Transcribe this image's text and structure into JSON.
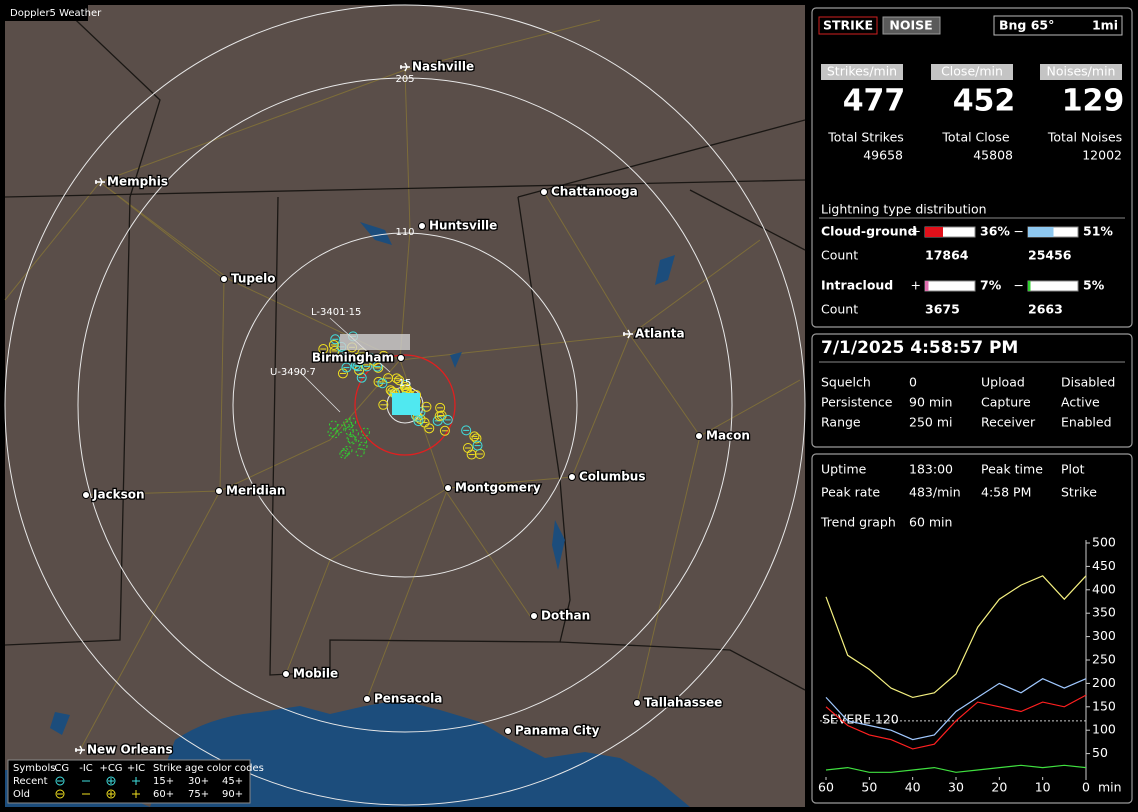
{
  "app_title": "Doppler5 Weather",
  "map": {
    "cities": [
      {
        "name": "Nashville",
        "icon": "airport"
      },
      {
        "name": "Memphis",
        "icon": "airport"
      },
      {
        "name": "Chattanooga",
        "icon": "dot"
      },
      {
        "name": "Huntsville",
        "icon": "dot"
      },
      {
        "name": "Tupelo",
        "icon": "dot"
      },
      {
        "name": "Atlanta",
        "icon": "airport"
      },
      {
        "name": "Birmingham",
        "icon": "dot"
      },
      {
        "name": "Macon",
        "icon": "dot"
      },
      {
        "name": "Jackson",
        "icon": "dot"
      },
      {
        "name": "Meridian",
        "icon": "dot"
      },
      {
        "name": "Montgomery",
        "icon": "dot"
      },
      {
        "name": "Columbus",
        "icon": "dot"
      },
      {
        "name": "Dothan",
        "icon": "dot"
      },
      {
        "name": "Mobile",
        "icon": "dot"
      },
      {
        "name": "Pensacola",
        "icon": "dot"
      },
      {
        "name": "Tallahassee",
        "icon": "dot"
      },
      {
        "name": "Panama City",
        "icon": "dot"
      },
      {
        "name": "New Orleans",
        "icon": "airport"
      }
    ],
    "ring_labels": [
      205,
      110,
      15
    ],
    "strike_tags": [
      "L-3401·15",
      "U-3490·7"
    ]
  },
  "legend": {
    "symbols_title": "Symbols",
    "symbol_headers": [
      "-CG",
      "-IC",
      "+CG",
      "+IC"
    ],
    "age_title": "Strike age color codes",
    "rows": [
      "Recent",
      "Old"
    ],
    "ages": [
      [
        "15+",
        "30+",
        "45+"
      ],
      [
        "60+",
        "75+",
        "90+"
      ]
    ]
  },
  "top_panel": {
    "mode_buttons": [
      "STRIKE",
      "NOISE"
    ],
    "bearing": "Bng 65°",
    "scale": "1mi",
    "rates": [
      {
        "header": "Strikes/min",
        "value": 477,
        "total_label": "Total Strikes",
        "total": 49658
      },
      {
        "header": "Close/min",
        "value": 452,
        "total_label": "Total Close",
        "total": 45808
      },
      {
        "header": "Noises/min",
        "value": 129,
        "total_label": "Total Noises",
        "total": 12002
      }
    ],
    "distribution": {
      "title": "Lightning type distribution",
      "rows": [
        {
          "label": "Cloud-ground",
          "signs": [
            "+",
            "−"
          ],
          "values": [
            36,
            51
          ],
          "value_labels": [
            "36%",
            "51%"
          ],
          "colors": [
            "#e0101a",
            "#8ec8f0"
          ],
          "count_label": "Count",
          "counts": [
            17864,
            25456
          ]
        },
        {
          "label": "Intracloud",
          "signs": [
            "+",
            "−"
          ],
          "values": [
            7,
            5
          ],
          "value_labels": [
            "7%",
            "5%"
          ],
          "colors": [
            "#e070b0",
            "#30d030"
          ],
          "count_label": "Count",
          "counts": [
            3675,
            2663
          ]
        }
      ]
    }
  },
  "status_panel": {
    "datetime": "7/1/2025 4:58:57 PM",
    "rows": [
      [
        "Squelch",
        0,
        "Upload",
        "Disabled"
      ],
      [
        "Persistence",
        "90 min",
        "Capture",
        "Active"
      ],
      [
        "Range",
        "250 mi",
        "Receiver",
        "Enabled"
      ]
    ]
  },
  "trend": {
    "rows": [
      [
        "Uptime",
        "183:00",
        "Peak time",
        "Plot"
      ],
      [
        "Peak rate",
        "483/min",
        "4:58 PM",
        "Strike"
      ]
    ],
    "graph_label": "Trend graph",
    "graph_span": "60 min",
    "xlim": [
      60,
      0
    ],
    "ylim": [
      0,
      500
    ],
    "xticks": [
      60,
      50,
      40,
      30,
      20,
      10,
      0
    ],
    "x_unit": "min",
    "yticks": [
      50,
      100,
      150,
      200,
      250,
      300,
      350,
      400,
      450,
      500
    ],
    "severe": {
      "value": 120,
      "label": "SEVERE 120"
    },
    "x": [
      60,
      55,
      50,
      45,
      40,
      35,
      30,
      25,
      20,
      15,
      10,
      5,
      0
    ],
    "series": [
      {
        "color": "#f4f080",
        "values": [
          385,
          260,
          230,
          190,
          170,
          180,
          220,
          320,
          380,
          410,
          430,
          380,
          430
        ]
      },
      {
        "color": "#a0c8ff",
        "values": [
          170,
          120,
          110,
          100,
          80,
          90,
          140,
          170,
          200,
          180,
          210,
          190,
          210
        ]
      },
      {
        "color": "#ff2020",
        "values": [
          150,
          110,
          90,
          80,
          60,
          70,
          120,
          160,
          150,
          140,
          160,
          150,
          175
        ]
      },
      {
        "color": "#40e040",
        "values": [
          15,
          20,
          10,
          10,
          15,
          20,
          10,
          15,
          20,
          25,
          20,
          25,
          20
        ]
      }
    ]
  }
}
